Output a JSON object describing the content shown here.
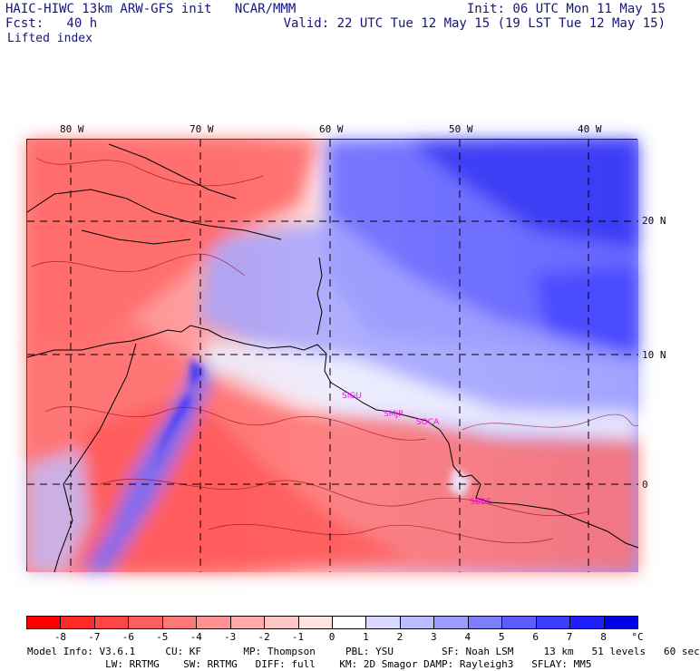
{
  "header": {
    "left1": "HAIC-HIWC 13km ARW-GFS init   NCAR/MMM",
    "left2": "Fcst:   40 h",
    "field": "Lifted index",
    "right1": "Init: 06 UTC Mon 11 May 15",
    "right2": "Valid: 22 UTC Tue 12 May 15 (19 LST Tue 12 May 15)"
  },
  "longitudes": [
    "80 W",
    "70 W",
    "60 W",
    "50 W",
    "40 W"
  ],
  "latitudes": [
    "20 N",
    "10 N",
    "0"
  ],
  "cities": [
    "SIGU",
    "SMJP",
    "SOCA",
    "SBBE"
  ],
  "colorbar": {
    "labels": [
      "-8",
      "-7",
      "-6",
      "-5",
      "-4",
      "-3",
      "-2",
      "-1",
      "0",
      "1",
      "2",
      "3",
      "4",
      "5",
      "6",
      "7",
      "8"
    ],
    "unit": "°C",
    "colors": [
      "#ff0000",
      "#ff2a2a",
      "#ff4545",
      "#ff5f5f",
      "#ff7878",
      "#ff9292",
      "#ffabab",
      "#ffc6c6",
      "#ffe2e2",
      "#ffffff",
      "#d9d9ff",
      "#bcbcff",
      "#9d9dff",
      "#7d7dff",
      "#5d5dff",
      "#3c3cff",
      "#1e1eff",
      "#0000e8"
    ]
  },
  "info": {
    "line1": "Model Info: V3.6.1     CU: KF       MP: Thompson     PBL: YSU        SF: Noah LSM     13 km   51 levels   60 sec",
    "line2": "             LW: RRTMG    SW: RRTMG   DIFF: full    KM: 2D Smagor DAMP: Rayleigh3   SFLAY: MM5"
  }
}
